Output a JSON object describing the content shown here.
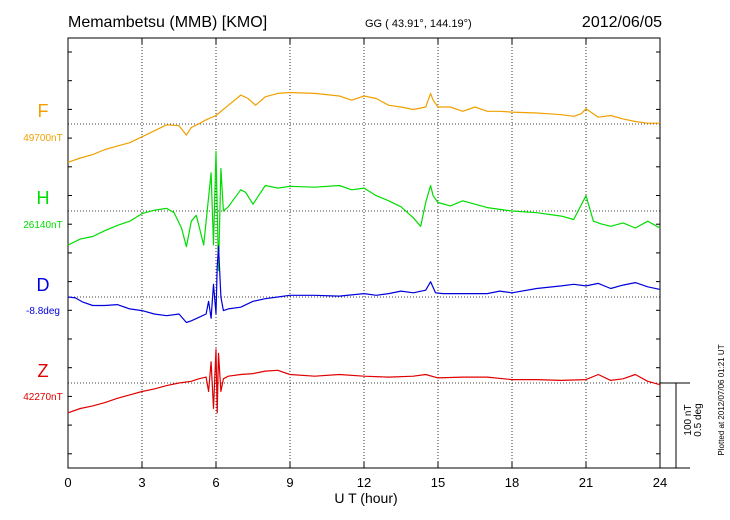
{
  "header": {
    "station": "Memambetsu (MMB)  [KMO]",
    "coords": "GG ( 43.91°, 144.19°)",
    "date": "2012/06/05"
  },
  "footer": {
    "plotted": "Plotted at 2012/07/06 01:21  UT"
  },
  "scale": {
    "nt": "100 nT",
    "deg": "0.5 deg"
  },
  "chart_data": {
    "type": "line",
    "xlabel": "U T (hour)",
    "xlim": [
      0,
      24
    ],
    "xticks": [
      "0",
      "3",
      "6",
      "9",
      "12",
      "15",
      "18",
      "21",
      "24"
    ],
    "grid": true,
    "series": [
      {
        "name": "F",
        "baseline_label": "49700nT",
        "color": "#f0a000",
        "units": "nT offset from baseline",
        "x": [
          0,
          0.5,
          1,
          1.5,
          2,
          2.5,
          3,
          3.5,
          4,
          4.5,
          4.8,
          5,
          5.3,
          5.6,
          6,
          6.5,
          7,
          7.3,
          7.6,
          8,
          8.5,
          9,
          10,
          11,
          11.5,
          12,
          12.5,
          13,
          13.5,
          14,
          14.5,
          14.7,
          14.8,
          15,
          15.5,
          16,
          16.5,
          17,
          17.5,
          18,
          19,
          19.5,
          20,
          20.5,
          20.8,
          21,
          21.5,
          22,
          22.5,
          23,
          23.5,
          24
        ],
        "y": [
          -45,
          -40,
          -36,
          -30,
          -26,
          -22,
          -15,
          -8,
          -1,
          -2,
          -13,
          -4,
          0,
          5,
          10,
          22,
          34,
          30,
          22,
          32,
          36,
          37,
          36,
          33,
          28,
          33,
          30,
          22,
          20,
          17,
          20,
          36,
          28,
          20,
          20,
          15,
          20,
          15,
          15,
          14,
          13,
          12,
          11,
          9,
          12,
          18,
          8,
          10,
          6,
          3,
          1,
          1
        ]
      },
      {
        "name": "H",
        "baseline_label": "26140nT",
        "color": "#00dd00",
        "units": "nT offset from baseline",
        "x": [
          0,
          0.5,
          1,
          1.5,
          2,
          2.5,
          3,
          3.5,
          4,
          4.3,
          4.6,
          4.8,
          5,
          5.2,
          5.5,
          5.8,
          5.9,
          6,
          6.1,
          6.2,
          6.3,
          6.5,
          7,
          7.2,
          7.5,
          8,
          8.5,
          9,
          10,
          11,
          11.5,
          12,
          12.5,
          13,
          13.5,
          14,
          14.3,
          14.5,
          14.7,
          14.8,
          15,
          15.5,
          16,
          17,
          18,
          19,
          20,
          20.5,
          21,
          21.3,
          21.6,
          22,
          22.5,
          23,
          23.5,
          24
        ],
        "y": [
          -40,
          -33,
          -30,
          -23,
          -17,
          -12,
          -3,
          1,
          3,
          -2,
          -20,
          -42,
          -12,
          -5,
          -40,
          45,
          -40,
          70,
          -70,
          50,
          0,
          5,
          25,
          22,
          8,
          30,
          27,
          29,
          28,
          30,
          25,
          27,
          18,
          12,
          5,
          -8,
          -18,
          10,
          30,
          18,
          10,
          6,
          12,
          4,
          0,
          -2,
          -6,
          -10,
          18,
          -12,
          -15,
          -18,
          -14,
          -20,
          -12,
          -20
        ]
      },
      {
        "name": "D",
        "baseline_label": "-8.8deg",
        "color": "#0000dd",
        "units": "nT-equivalent offset from baseline",
        "x": [
          0,
          0.3,
          0.6,
          1,
          1.5,
          2,
          2.5,
          3,
          3.5,
          4,
          4.5,
          4.8,
          5,
          5.3,
          5.6,
          5.7,
          5.8,
          5.9,
          6,
          6.05,
          6.1,
          6.2,
          6.3,
          6.5,
          7,
          7.5,
          8,
          8.5,
          9,
          10,
          11,
          12,
          12.5,
          13,
          13.5,
          14,
          14.5,
          14.7,
          14.9,
          15.2,
          16,
          17,
          17.5,
          18,
          19,
          20,
          20.5,
          21,
          21.5,
          22,
          22.5,
          23,
          23.5,
          24
        ],
        "y": [
          0,
          -1,
          -6,
          -10,
          -10,
          -9,
          -14,
          -16,
          -20,
          -22,
          -20,
          -30,
          -28,
          -24,
          -20,
          -5,
          -25,
          15,
          -20,
          35,
          60,
          0,
          -16,
          -14,
          -12,
          -5,
          -2,
          0,
          2,
          2,
          1,
          4,
          2,
          4,
          7,
          5,
          8,
          18,
          5,
          4,
          4,
          4,
          7,
          5,
          10,
          13,
          15,
          13,
          16,
          10,
          14,
          17,
          12,
          9
        ]
      },
      {
        "name": "Z",
        "baseline_label": "42270nT",
        "color": "#e00000",
        "units": "nT offset from baseline",
        "x": [
          0,
          0.5,
          1,
          1.5,
          2,
          2.5,
          3,
          3.5,
          4,
          4.5,
          5,
          5.3,
          5.6,
          5.7,
          5.8,
          5.9,
          6,
          6.05,
          6.1,
          6.2,
          6.3,
          6.5,
          7,
          7.5,
          8,
          8.5,
          9,
          10,
          11,
          12,
          13,
          14,
          14.5,
          15,
          16,
          17,
          18,
          19,
          20,
          21,
          21.5,
          22,
          22.5,
          23,
          23.5,
          24
        ],
        "y": [
          -35,
          -30,
          -27,
          -23,
          -18,
          -14,
          -10,
          -7,
          -3,
          0,
          2,
          5,
          7,
          -10,
          25,
          -30,
          40,
          -35,
          35,
          -10,
          5,
          8,
          10,
          11,
          14,
          15,
          10,
          8,
          10,
          8,
          7,
          8,
          10,
          6,
          7,
          7,
          4,
          4,
          3,
          4,
          10,
          3,
          5,
          10,
          2,
          -2
        ]
      }
    ]
  }
}
